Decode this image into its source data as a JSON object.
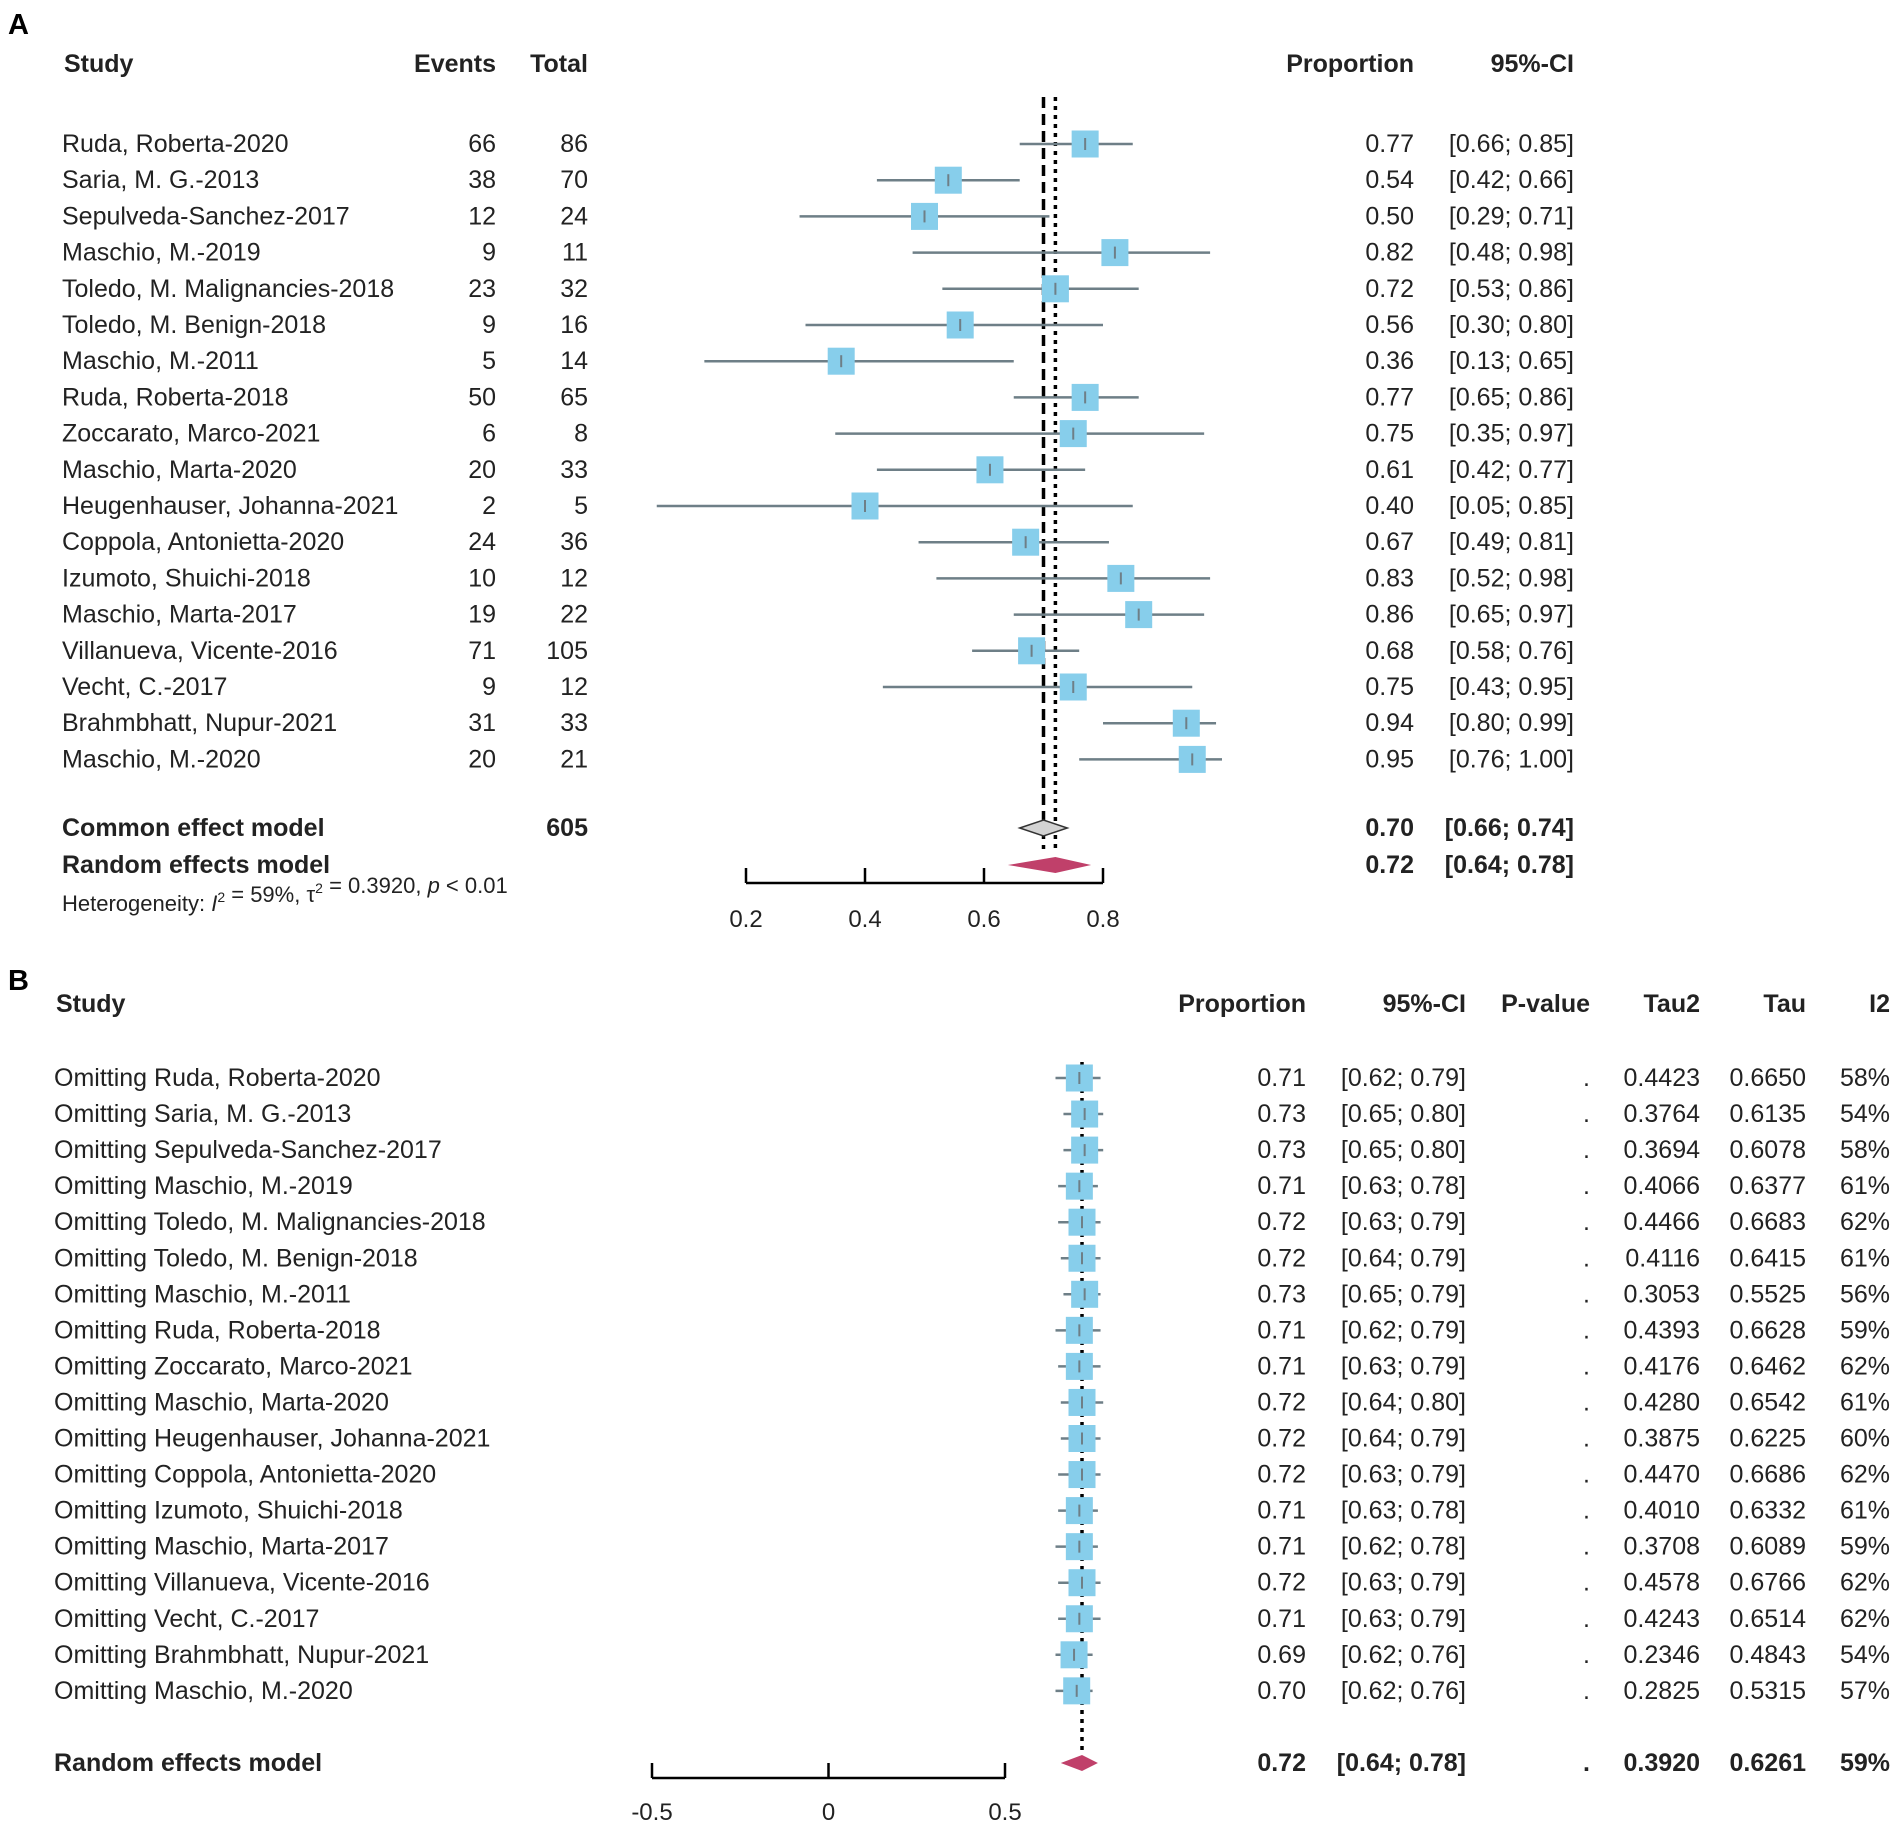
{
  "panel_a_label": "A",
  "panel_b_label": "B",
  "chart_data": [
    {
      "type": "forest",
      "panel": "A",
      "headers": {
        "study": "Study",
        "events": "Events",
        "total": "Total",
        "proportion": "Proportion",
        "ci": "95%-CI"
      },
      "xlim": [
        0.2,
        0.8
      ],
      "xticks": [
        "0.2",
        "0.4",
        "0.6",
        "0.8"
      ],
      "reference_lines": {
        "common_effect": 0.7,
        "random_effects": 0.72
      },
      "studies": [
        {
          "name": "Ruda, Roberta-2020",
          "events": "66",
          "total": "86",
          "prop": 0.77,
          "lo": 0.66,
          "hi": 0.85,
          "prop_text": "0.77",
          "ci_text": "[0.66; 0.85]",
          "weight": 1.0
        },
        {
          "name": "Saria, M. G.-2013",
          "events": "38",
          "total": "70",
          "prop": 0.54,
          "lo": 0.42,
          "hi": 0.66,
          "prop_text": "0.54",
          "ci_text": "[0.42; 0.66]",
          "weight": 1.0
        },
        {
          "name": "Sepulveda-Sanchez-2017",
          "events": "12",
          "total": "24",
          "prop": 0.5,
          "lo": 0.29,
          "hi": 0.71,
          "prop_text": "0.50",
          "ci_text": "[0.29; 0.71]",
          "weight": 1.0
        },
        {
          "name": "Maschio, M.-2019",
          "events": "9",
          "total": "11",
          "prop": 0.82,
          "lo": 0.48,
          "hi": 0.98,
          "prop_text": "0.82",
          "ci_text": "[0.48; 0.98]",
          "weight": 1.0
        },
        {
          "name": "Toledo, M. Malignancies-2018",
          "events": "23",
          "total": "32",
          "prop": 0.72,
          "lo": 0.53,
          "hi": 0.86,
          "prop_text": "0.72",
          "ci_text": "[0.53; 0.86]",
          "weight": 1.0
        },
        {
          "name": "Toledo, M. Benign-2018",
          "events": "9",
          "total": "16",
          "prop": 0.56,
          "lo": 0.3,
          "hi": 0.8,
          "prop_text": "0.56",
          "ci_text": "[0.30; 0.80]",
          "weight": 1.0
        },
        {
          "name": "Maschio, M.-2011",
          "events": "5",
          "total": "14",
          "prop": 0.36,
          "lo": 0.13,
          "hi": 0.65,
          "prop_text": "0.36",
          "ci_text": "[0.13; 0.65]",
          "weight": 1.0
        },
        {
          "name": "Ruda, Roberta-2018",
          "events": "50",
          "total": "65",
          "prop": 0.77,
          "lo": 0.65,
          "hi": 0.86,
          "prop_text": "0.77",
          "ci_text": "[0.65; 0.86]",
          "weight": 1.0
        },
        {
          "name": "Zoccarato, Marco-2021",
          "events": "6",
          "total": "8",
          "prop": 0.75,
          "lo": 0.35,
          "hi": 0.97,
          "prop_text": "0.75",
          "ci_text": "[0.35; 0.97]",
          "weight": 1.0
        },
        {
          "name": "Maschio, Marta-2020",
          "events": "20",
          "total": "33",
          "prop": 0.61,
          "lo": 0.42,
          "hi": 0.77,
          "prop_text": "0.61",
          "ci_text": "[0.42; 0.77]",
          "weight": 1.0
        },
        {
          "name": "Heugenhauser, Johanna-2021",
          "events": "2",
          "total": "5",
          "prop": 0.4,
          "lo": 0.05,
          "hi": 0.85,
          "prop_text": "0.40",
          "ci_text": "[0.05; 0.85]",
          "weight": 1.0
        },
        {
          "name": "Coppola, Antonietta-2020",
          "events": "24",
          "total": "36",
          "prop": 0.67,
          "lo": 0.49,
          "hi": 0.81,
          "prop_text": "0.67",
          "ci_text": "[0.49; 0.81]",
          "weight": 1.0
        },
        {
          "name": "Izumoto, Shuichi-2018",
          "events": "10",
          "total": "12",
          "prop": 0.83,
          "lo": 0.52,
          "hi": 0.98,
          "prop_text": "0.83",
          "ci_text": "[0.52; 0.98]",
          "weight": 1.0
        },
        {
          "name": "Maschio, Marta-2017",
          "events": "19",
          "total": "22",
          "prop": 0.86,
          "lo": 0.65,
          "hi": 0.97,
          "prop_text": "0.86",
          "ci_text": "[0.65; 0.97]",
          "weight": 1.0
        },
        {
          "name": "Villanueva, Vicente-2016",
          "events": "71",
          "total": "105",
          "prop": 0.68,
          "lo": 0.58,
          "hi": 0.76,
          "prop_text": "0.68",
          "ci_text": "[0.58; 0.76]",
          "weight": 1.0
        },
        {
          "name": "Vecht, C.-2017",
          "events": "9",
          "total": "12",
          "prop": 0.75,
          "lo": 0.43,
          "hi": 0.95,
          "prop_text": "0.75",
          "ci_text": "[0.43; 0.95]",
          "weight": 1.0
        },
        {
          "name": "Brahmbhatt, Nupur-2021",
          "events": "31",
          "total": "33",
          "prop": 0.94,
          "lo": 0.8,
          "hi": 0.99,
          "prop_text": "0.94",
          "ci_text": "[0.80; 0.99]",
          "weight": 1.0
        },
        {
          "name": "Maschio, M.-2020",
          "events": "20",
          "total": "21",
          "prop": 0.95,
          "lo": 0.76,
          "hi": 1.0,
          "prop_text": "0.95",
          "ci_text": "[0.76; 1.00]",
          "weight": 1.0
        }
      ],
      "common": {
        "name": "Common effect model",
        "total": "605",
        "est": 0.7,
        "lo": 0.66,
        "hi": 0.74,
        "prop_text": "0.70",
        "ci_text": "[0.66; 0.74]"
      },
      "random": {
        "name": "Random effects model",
        "est": 0.72,
        "lo": 0.64,
        "hi": 0.78,
        "prop_text": "0.72",
        "ci_text": "[0.64; 0.78]"
      },
      "heterogeneity": {
        "prefix": "Heterogeneity: ",
        "i2_symbol": "I",
        "i2_value": " = 59%, ",
        "tau_symbol": "τ",
        "tau_value": " = 0.3920, ",
        "p_symbol": "p",
        "p_value": " < 0.01",
        "sup": "2"
      }
    },
    {
      "type": "forest",
      "panel": "B",
      "headers": {
        "study": "Study",
        "proportion": "Proportion",
        "ci": "95%-CI",
        "pvalue": "P-value",
        "tau2": "Tau2",
        "tau": "Tau",
        "i2": "I2"
      },
      "xlim": [
        -0.5,
        0.5
      ],
      "xticks": [
        "-0.5",
        "0",
        "0.5"
      ],
      "reference_line": 0.72,
      "studies": [
        {
          "name": "Omitting Ruda, Roberta-2020",
          "prop": 0.71,
          "lo": 0.62,
          "hi": 0.79,
          "prop_text": "0.71",
          "ci_text": "[0.62; 0.79]",
          "p": ".",
          "tau2": "0.4423",
          "tau": "0.6650",
          "i2": "58%"
        },
        {
          "name": "Omitting Saria, M. G.-2013",
          "prop": 0.73,
          "lo": 0.65,
          "hi": 0.8,
          "prop_text": "0.73",
          "ci_text": "[0.65; 0.80]",
          "p": ".",
          "tau2": "0.3764",
          "tau": "0.6135",
          "i2": "54%"
        },
        {
          "name": "Omitting Sepulveda-Sanchez-2017",
          "prop": 0.73,
          "lo": 0.65,
          "hi": 0.8,
          "prop_text": "0.73",
          "ci_text": "[0.65; 0.80]",
          "p": ".",
          "tau2": "0.3694",
          "tau": "0.6078",
          "i2": "58%"
        },
        {
          "name": "Omitting Maschio, M.-2019",
          "prop": 0.71,
          "lo": 0.63,
          "hi": 0.78,
          "prop_text": "0.71",
          "ci_text": "[0.63; 0.78]",
          "p": ".",
          "tau2": "0.4066",
          "tau": "0.6377",
          "i2": "61%"
        },
        {
          "name": "Omitting Toledo, M. Malignancies-2018",
          "prop": 0.72,
          "lo": 0.63,
          "hi": 0.79,
          "prop_text": "0.72",
          "ci_text": "[0.63; 0.79]",
          "p": ".",
          "tau2": "0.4466",
          "tau": "0.6683",
          "i2": "62%"
        },
        {
          "name": "Omitting Toledo, M. Benign-2018",
          "prop": 0.72,
          "lo": 0.64,
          "hi": 0.79,
          "prop_text": "0.72",
          "ci_text": "[0.64; 0.79]",
          "p": ".",
          "tau2": "0.4116",
          "tau": "0.6415",
          "i2": "61%"
        },
        {
          "name": "Omitting Maschio, M.-2011",
          "prop": 0.73,
          "lo": 0.65,
          "hi": 0.79,
          "prop_text": "0.73",
          "ci_text": "[0.65; 0.79]",
          "p": ".",
          "tau2": "0.3053",
          "tau": "0.5525",
          "i2": "56%"
        },
        {
          "name": "Omitting Ruda, Roberta-2018",
          "prop": 0.71,
          "lo": 0.62,
          "hi": 0.79,
          "prop_text": "0.71",
          "ci_text": "[0.62; 0.79]",
          "p": ".",
          "tau2": "0.4393",
          "tau": "0.6628",
          "i2": "59%"
        },
        {
          "name": "Omitting Zoccarato, Marco-2021",
          "prop": 0.71,
          "lo": 0.63,
          "hi": 0.79,
          "prop_text": "0.71",
          "ci_text": "[0.63; 0.79]",
          "p": ".",
          "tau2": "0.4176",
          "tau": "0.6462",
          "i2": "62%"
        },
        {
          "name": "Omitting Maschio, Marta-2020",
          "prop": 0.72,
          "lo": 0.64,
          "hi": 0.8,
          "prop_text": "0.72",
          "ci_text": "[0.64; 0.80]",
          "p": ".",
          "tau2": "0.4280",
          "tau": "0.6542",
          "i2": "61%"
        },
        {
          "name": "Omitting Heugenhauser, Johanna-2021",
          "prop": 0.72,
          "lo": 0.64,
          "hi": 0.79,
          "prop_text": "0.72",
          "ci_text": "[0.64; 0.79]",
          "p": ".",
          "tau2": "0.3875",
          "tau": "0.6225",
          "i2": "60%"
        },
        {
          "name": "Omitting Coppola, Antonietta-2020",
          "prop": 0.72,
          "lo": 0.63,
          "hi": 0.79,
          "prop_text": "0.72",
          "ci_text": "[0.63; 0.79]",
          "p": ".",
          "tau2": "0.4470",
          "tau": "0.6686",
          "i2": "62%"
        },
        {
          "name": "Omitting Izumoto, Shuichi-2018",
          "prop": 0.71,
          "lo": 0.63,
          "hi": 0.78,
          "prop_text": "0.71",
          "ci_text": "[0.63; 0.78]",
          "p": ".",
          "tau2": "0.4010",
          "tau": "0.6332",
          "i2": "61%"
        },
        {
          "name": "Omitting Maschio, Marta-2017",
          "prop": 0.71,
          "lo": 0.62,
          "hi": 0.78,
          "prop_text": "0.71",
          "ci_text": "[0.62; 0.78]",
          "p": ".",
          "tau2": "0.3708",
          "tau": "0.6089",
          "i2": "59%"
        },
        {
          "name": "Omitting Villanueva, Vicente-2016",
          "prop": 0.72,
          "lo": 0.63,
          "hi": 0.79,
          "prop_text": "0.72",
          "ci_text": "[0.63; 0.79]",
          "p": ".",
          "tau2": "0.4578",
          "tau": "0.6766",
          "i2": "62%"
        },
        {
          "name": "Omitting Vecht, C.-2017",
          "prop": 0.71,
          "lo": 0.63,
          "hi": 0.79,
          "prop_text": "0.71",
          "ci_text": "[0.63; 0.79]",
          "p": ".",
          "tau2": "0.4243",
          "tau": "0.6514",
          "i2": "62%"
        },
        {
          "name": "Omitting Brahmbhatt, Nupur-2021",
          "prop": 0.69,
          "lo": 0.62,
          "hi": 0.76,
          "prop_text": "0.69",
          "ci_text": "[0.62; 0.76]",
          "p": ".",
          "tau2": "0.2346",
          "tau": "0.4843",
          "i2": "54%"
        },
        {
          "name": "Omitting Maschio, M.-2020",
          "prop": 0.7,
          "lo": 0.62,
          "hi": 0.76,
          "prop_text": "0.70",
          "ci_text": "[0.62; 0.76]",
          "p": ".",
          "tau2": "0.2825",
          "tau": "0.5315",
          "i2": "57%"
        }
      ],
      "random": {
        "name": "Random effects model",
        "est": 0.72,
        "lo": 0.64,
        "hi": 0.78,
        "prop_text": "0.72",
        "ci_text": "[0.64; 0.78]",
        "p": ".",
        "tau2": "0.3920",
        "tau": "0.6261",
        "i2": "59%"
      }
    }
  ],
  "colors": {
    "box": "#87CEEB",
    "ci_line": "#6e7f87",
    "common_diamond": "#d3d3d3",
    "random_diamond": "#c0406a",
    "text": "#222222"
  }
}
